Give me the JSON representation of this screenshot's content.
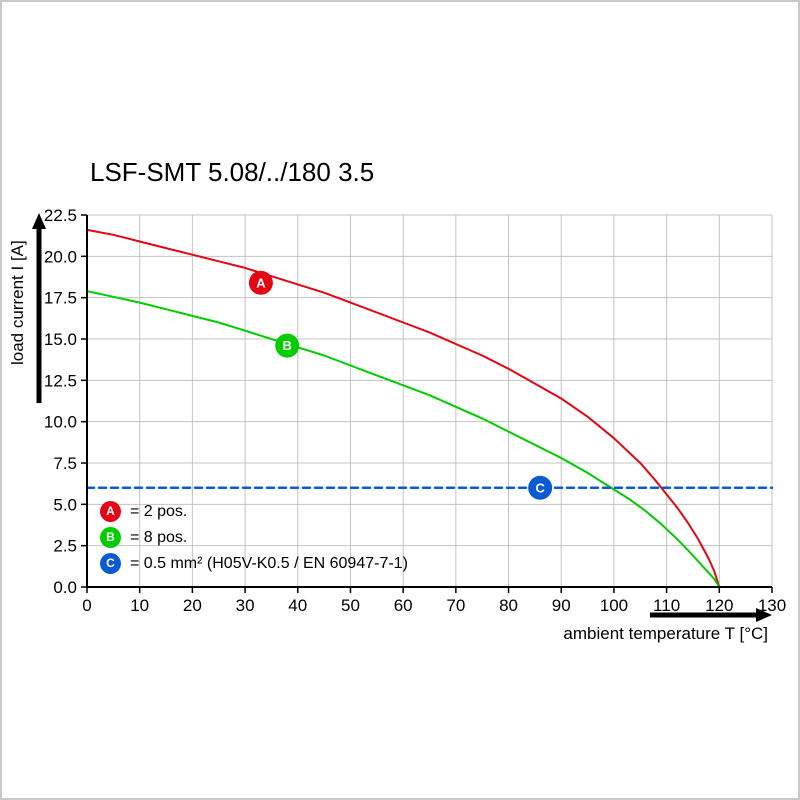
{
  "page": {
    "background": "#ffffff",
    "frame_color": "#c9c9c9"
  },
  "chart_data": {
    "type": "line",
    "title": "LSF-SMT 5.08/../180 3.5",
    "xlabel": "ambient temperature T [°C]",
    "ylabel": "load current I [A]",
    "xlim": [
      0,
      130
    ],
    "ylim": [
      0,
      22.5
    ],
    "x_ticks": [
      0,
      10,
      20,
      30,
      40,
      50,
      60,
      70,
      80,
      90,
      100,
      110,
      120,
      130
    ],
    "x_tick_labels": [
      "0",
      "10",
      "20",
      "30",
      "40",
      "50",
      "60",
      "70",
      "80",
      "90",
      "100",
      "110",
      "120",
      "130"
    ],
    "y_ticks": [
      0,
      2.5,
      5,
      7.5,
      10,
      12.5,
      15,
      17.5,
      20,
      22.5
    ],
    "y_tick_labels": [
      "0.0",
      "2.5",
      "5.0",
      "7.5",
      "10.0",
      "12.5",
      "15.0",
      "17.5",
      "20.0",
      "22.5"
    ],
    "grid": true,
    "grid_color": "#c3c3c3",
    "axis_color": "#000000",
    "legend_position": "lower-left-inside",
    "series": [
      {
        "name": "A",
        "label": "2 pos.",
        "color": "#e30613",
        "width": 2,
        "dash": "none",
        "points": [
          [
            0,
            21.6
          ],
          [
            5,
            21.3
          ],
          [
            10,
            20.9
          ],
          [
            15,
            20.5
          ],
          [
            20,
            20.1
          ],
          [
            25,
            19.7
          ],
          [
            30,
            19.3
          ],
          [
            35,
            18.8
          ],
          [
            40,
            18.3
          ],
          [
            45,
            17.8
          ],
          [
            50,
            17.2
          ],
          [
            55,
            16.6
          ],
          [
            60,
            16.0
          ],
          [
            65,
            15.4
          ],
          [
            70,
            14.7
          ],
          [
            75,
            14.0
          ],
          [
            80,
            13.2
          ],
          [
            85,
            12.3
          ],
          [
            90,
            11.4
          ],
          [
            95,
            10.3
          ],
          [
            100,
            9.0
          ],
          [
            105,
            7.5
          ],
          [
            108,
            6.4
          ],
          [
            110,
            5.6
          ],
          [
            112,
            4.8
          ],
          [
            114,
            3.9
          ],
          [
            116,
            2.9
          ],
          [
            118,
            1.7
          ],
          [
            119,
            1.0
          ],
          [
            120,
            0
          ]
        ]
      },
      {
        "name": "B",
        "label": "8 pos.",
        "color": "#00cc00",
        "width": 2,
        "dash": "none",
        "points": [
          [
            0,
            17.9
          ],
          [
            5,
            17.55
          ],
          [
            10,
            17.2
          ],
          [
            15,
            16.8
          ],
          [
            20,
            16.4
          ],
          [
            25,
            16.0
          ],
          [
            30,
            15.5
          ],
          [
            35,
            15.0
          ],
          [
            40,
            14.5
          ],
          [
            45,
            14.0
          ],
          [
            50,
            13.4
          ],
          [
            55,
            12.8
          ],
          [
            60,
            12.2
          ],
          [
            65,
            11.6
          ],
          [
            70,
            10.9
          ],
          [
            75,
            10.2
          ],
          [
            80,
            9.4
          ],
          [
            85,
            8.6
          ],
          [
            90,
            7.8
          ],
          [
            95,
            6.9
          ],
          [
            100,
            5.9
          ],
          [
            103,
            5.3
          ],
          [
            106,
            4.6
          ],
          [
            109,
            3.8
          ],
          [
            112,
            2.9
          ],
          [
            115,
            1.9
          ],
          [
            117,
            1.2
          ],
          [
            119,
            0.5
          ],
          [
            120,
            0
          ]
        ]
      },
      {
        "name": "C",
        "label": "0.5 mm² (H05V-K0.5 / EN 60947-7-1)",
        "color": "#0a5bd3",
        "width": 2.5,
        "dash": "7 5",
        "points": [
          [
            0,
            6
          ],
          [
            130,
            6
          ]
        ]
      }
    ],
    "markers": [
      {
        "symbol": "A",
        "x": 33,
        "y": 18.4,
        "color": "#e30613"
      },
      {
        "symbol": "B",
        "x": 38,
        "y": 14.6,
        "color": "#00cc00"
      },
      {
        "symbol": "C",
        "x": 86,
        "y": 6.0,
        "color": "#0a5bd3"
      }
    ],
    "legend": [
      {
        "symbol": "A",
        "color": "#e30613",
        "text": "= 2 pos."
      },
      {
        "symbol": "B",
        "color": "#00cc00",
        "text": "= 8 pos."
      },
      {
        "symbol": "C",
        "color": "#0a5bd3",
        "text": "= 0.5 mm² (H05V-K0.5 / EN 60947-7-1)"
      }
    ]
  }
}
